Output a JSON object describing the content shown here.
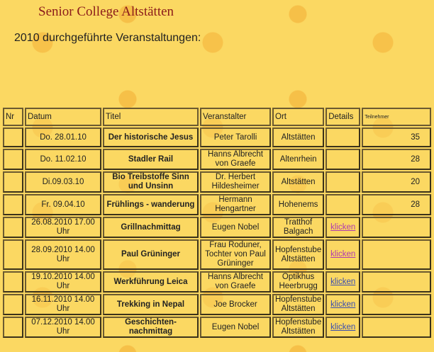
{
  "title": "Senior College Altstätten",
  "subtitle": "2010 durchgeführte Veranstaltungen:",
  "headers": [
    "Nr",
    "Datum",
    "Titel",
    "Veranstalter",
    "Ort",
    "Details",
    "Teilnehmer"
  ],
  "rows": [
    {
      "nr": "",
      "datum": "Do. 28.01.10",
      "titel": "Der historische Jesus",
      "veranstalter": "Peter Tarolli",
      "ort": "Altstätten",
      "details": "",
      "teilnehmer": "35"
    },
    {
      "nr": "",
      "datum": "Do. 11.02.10",
      "titel": "Stadler Rail",
      "veranstalter": "Hanns Albrecht von Graefe",
      "ort": "Altenrhein",
      "details": "",
      "teilnehmer": "28"
    },
    {
      "nr": "",
      "datum": "Di.09.03.10",
      "titel": "Bio Treibstoffe  Sinn und Unsinn",
      "veranstalter": "Dr. Herbert Hildesheimer",
      "ort": "Altstätten",
      "details": "",
      "teilnehmer": "20"
    },
    {
      "nr": "",
      "datum": "Fr. 09.04.10",
      "titel": "Frühlings - wanderung",
      "veranstalter": "Hermann Hengartner",
      "ort": "Hohenems",
      "details": "",
      "teilnehmer": "28"
    },
    {
      "nr": "",
      "datum": "26.08.2010 17.00 Uhr",
      "titel": "Grillnachmittag",
      "veranstalter": "Eugen Nobel",
      "ort": "Tratthof Balgach",
      "details": "klicken",
      "teilnehmer": ""
    },
    {
      "nr": "",
      "datum": "28.09.2010 14.00 Uhr",
      "titel": "Paul Grüninger",
      "veranstalter": "Frau Roduner, Tochter von Paul Grüninger",
      "ort": "Hopfenstube Altstätten",
      "details": "klicken",
      "teilnehmer": ""
    },
    {
      "nr": "",
      "datum": "19.10.2010 14.00 Uhr",
      "titel": "Werkführung Leica",
      "veranstalter": "Hanns Albrecht von Graefe",
      "ort": "Optikhus Heerbrugg",
      "details": "klicken",
      "teilnehmer": ""
    },
    {
      "nr": "",
      "datum": "16.11.2010 14.00 Uhr",
      "titel": "Trekking in Nepal",
      "veranstalter": "Joe Brocker",
      "ort": "Hopfenstube Altstätten",
      "details": "klicken",
      "teilnehmer": ""
    },
    {
      "nr": "",
      "datum": "07.12.2010 14.00 Uhr",
      "titel": "Geschichten-nachmittag",
      "veranstalter": "Eugen Nobel",
      "ort": "Hopfenstube Altstätten",
      "details": "klicken",
      "teilnehmer": ""
    }
  ]
}
